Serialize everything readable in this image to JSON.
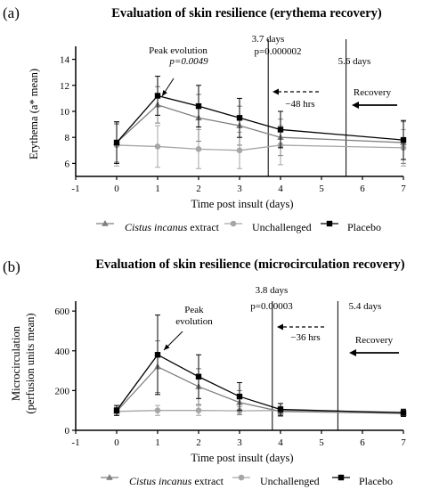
{
  "colors": {
    "cistus": "#7f7f7f",
    "unchallenged": "#a6a6a6",
    "placebo": "#000000",
    "axis": "#000000"
  },
  "legend_items": [
    {
      "label_italic": "Cistus incanus",
      "label_rest": " extract",
      "marker": "triangle",
      "key": "cistus"
    },
    {
      "label_italic": "",
      "label_rest": "Unchallenged",
      "marker": "circle",
      "key": "unchallenged"
    },
    {
      "label_italic": "",
      "label_rest": "Placebo",
      "marker": "square",
      "key": "placebo"
    }
  ],
  "chart_data": [
    {
      "type": "line",
      "panel_label": "(a)",
      "title": "Evaluation of skin resilience (erythema recovery)",
      "xlabel": "Time post insult (days)",
      "ylabel": "Erythema (a* mean)",
      "xlim": [
        -1,
        7
      ],
      "ylim": [
        5,
        15
      ],
      "x_ticks": [
        -1,
        0,
        1,
        2,
        3,
        4,
        5,
        6,
        7
      ],
      "y_ticks": [
        6,
        8,
        10,
        12,
        14
      ],
      "x": [
        0,
        1,
        2,
        3,
        4,
        7
      ],
      "series": [
        {
          "name": "Cistus incanus extract",
          "key": "cistus",
          "values": [
            7.6,
            10.5,
            9.5,
            8.9,
            8.0,
            7.6
          ],
          "err": [
            1.5,
            1.4,
            1.8,
            1.5,
            1.4,
            1.6
          ]
        },
        {
          "name": "Unchallenged",
          "key": "unchallenged",
          "values": [
            7.4,
            7.3,
            7.1,
            7.0,
            7.4,
            7.2
          ],
          "err": [
            1.6,
            1.6,
            1.5,
            1.4,
            1.5,
            1.4
          ]
        },
        {
          "name": "Placebo",
          "key": "placebo",
          "values": [
            7.6,
            11.2,
            10.4,
            9.5,
            8.6,
            7.8
          ],
          "err": [
            1.6,
            1.5,
            1.6,
            1.5,
            1.4,
            1.5
          ]
        }
      ],
      "annotations": {
        "peak_label": "Peak evolution",
        "peak_p": "p=0.0049",
        "vline1_value": 3.7,
        "vline1_label": "3.7 days",
        "vline1_p": "p=0.000002",
        "vline2_value": 5.6,
        "vline2_label": "5.6 days",
        "hrs_label": "−48 hrs",
        "recovery_label": "Recovery"
      }
    },
    {
      "type": "line",
      "panel_label": "(b)",
      "title": "Evaluation of skin resilience (microcirculation recovery)",
      "xlabel": "Time post insult (days)",
      "ylabel_line1": "Microcirculation",
      "ylabel_line2": "(perfusion units mean)",
      "xlim": [
        -1,
        7
      ],
      "ylim": [
        0,
        650
      ],
      "x_ticks": [
        -1,
        0,
        1,
        2,
        3,
        4,
        5,
        6,
        7
      ],
      "y_ticks": [
        0,
        200,
        400,
        600
      ],
      "x": [
        0,
        1,
        2,
        3,
        4,
        7
      ],
      "series": [
        {
          "name": "Cistus incanus extract",
          "key": "cistus",
          "values": [
            95,
            320,
            220,
            140,
            95,
            85
          ],
          "err": [
            20,
            130,
            90,
            60,
            25,
            15
          ]
        },
        {
          "name": "Unchallenged",
          "key": "unchallenged",
          "values": [
            95,
            100,
            100,
            98,
            100,
            92
          ],
          "err": [
            20,
            25,
            25,
            20,
            20,
            15
          ]
        },
        {
          "name": "Placebo",
          "key": "placebo",
          "values": [
            100,
            380,
            270,
            170,
            105,
            88
          ],
          "err": [
            25,
            200,
            110,
            70,
            30,
            18
          ]
        }
      ],
      "annotations": {
        "peak_label_line1": "Peak",
        "peak_label_line2": "evolution",
        "vline1_value": 3.8,
        "vline1_label": "3.8 days",
        "vline1_p": "p=0.00003",
        "vline2_value": 5.4,
        "vline2_label": "5.4 days",
        "hrs_label": "−36 hrs",
        "recovery_label": "Recovery"
      }
    }
  ]
}
